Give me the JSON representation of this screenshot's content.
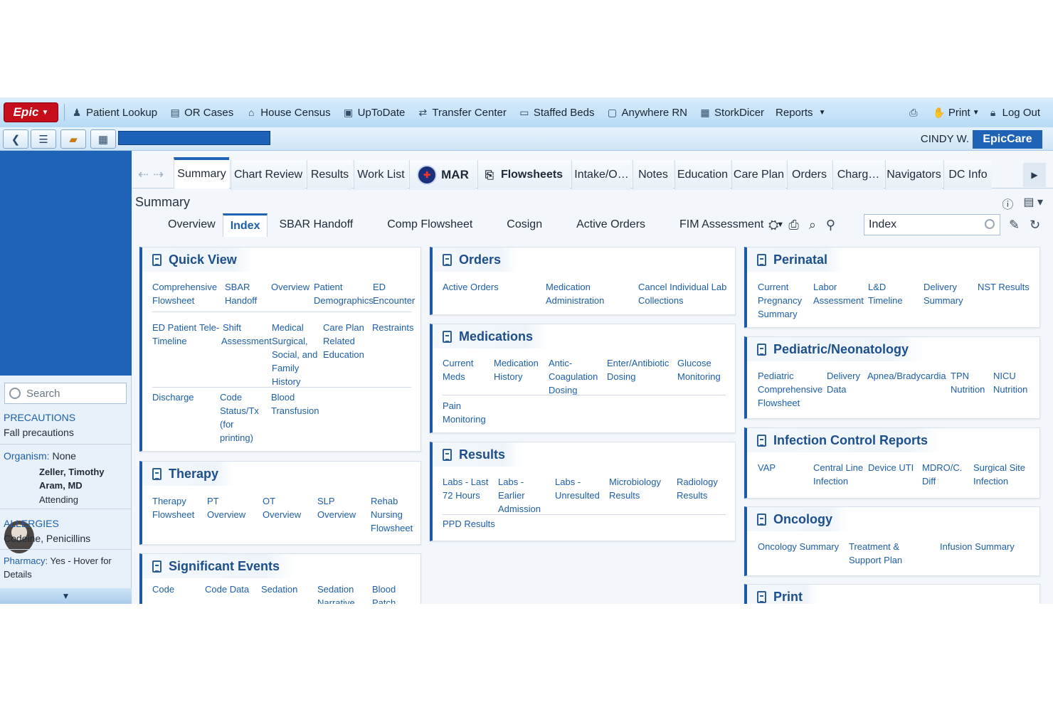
{
  "menubar": {
    "epic_label": "Epic",
    "items": [
      {
        "label": "Patient Lookup",
        "icon": "person-icon"
      },
      {
        "label": "OR Cases",
        "icon": "clipboard-icon"
      },
      {
        "label": "House Census",
        "icon": "house-icon"
      },
      {
        "label": "UpToDate",
        "icon": "book-icon"
      },
      {
        "label": "Transfer Center",
        "icon": "transfer-icon"
      },
      {
        "label": "Staffed Beds",
        "icon": "bed-icon"
      },
      {
        "label": "Anywhere RN",
        "icon": "document-icon"
      },
      {
        "label": "StorkDicer",
        "icon": "grid-icon"
      },
      {
        "label": "Reports",
        "icon": ""
      }
    ],
    "print_label": "Print",
    "logout_label": "Log Out"
  },
  "toolbar2": {
    "user": "CINDY W.",
    "app": "EpicCare"
  },
  "sidebar": {
    "search_placeholder": "Search",
    "precautions_label": "PRECAUTIONS",
    "precautions_value": "Fall precautions",
    "organism_label": "Organism:",
    "organism_value": "None",
    "physician_name_1": "Zeller, Timothy",
    "physician_name_2": "Aram, MD",
    "physician_role": "Attending",
    "allergies_label": "ALLERGIES",
    "allergies_value": "Codeine, Penicillins",
    "pharmacy_label": "Pharmacy:",
    "pharmacy_value_1": "Yes - Hover for",
    "pharmacy_value_2": "Details"
  },
  "tabs": [
    "Summary",
    "Chart Review",
    "Results",
    "Work List",
    "MAR",
    "Flowsheets",
    "Intake/O…",
    "Notes",
    "Education",
    "Care Plan",
    "Orders",
    "Charg…",
    "Navigators",
    "DC Info"
  ],
  "summary_title": "Summary",
  "subtabs": [
    "Overview",
    "Index",
    "SBAR Handoff",
    "Comp Flowsheet",
    "Cosign",
    "Active Orders",
    "FIM Assessment"
  ],
  "index_search_value": "Index",
  "cards": {
    "quick_view": {
      "title": "Quick View",
      "links": [
        "Comprehensive",
        "Flowsheet",
        "SBAR",
        "Handoff",
        "Overview",
        "Patient",
        "Demographics",
        "ED",
        "Encounter",
        "ED Patient",
        "Timeline",
        "Tele-",
        "Shift",
        "Assessment",
        "Medical",
        "Surgical,",
        "Social, and",
        "Family",
        "History",
        "Care Plan",
        "Related",
        "Education",
        "Restraints",
        "Discharge",
        "Code",
        "Status/Tx",
        "(for",
        "printing)",
        "Blood",
        "Transfusion"
      ]
    },
    "therapy": {
      "title": "Therapy",
      "links": [
        "Therapy",
        "Flowsheet",
        "PT",
        "Overview",
        "OT",
        "Overview",
        "SLP",
        "Overview",
        "Rehab",
        "Nursing",
        "Flowsheet"
      ]
    },
    "significant_events": {
      "title": "Significant Events",
      "links": [
        "Code",
        "Code Data",
        "Sedation",
        "Sedation",
        "Narrative",
        "Blood",
        "Patch"
      ]
    },
    "orders": {
      "title": "Orders",
      "links": [
        "Active Orders",
        "Medication",
        "Administration",
        "Cancel Individual Lab",
        "Collections"
      ]
    },
    "medications": {
      "title": "Medications",
      "links": [
        "Current",
        "Meds",
        "Medication",
        "History",
        "Antic-",
        "Coagulation",
        "Dosing",
        "Enter/Antibiotic",
        "Dosing",
        "Glucose",
        "Monitoring",
        "Pain",
        "Monitoring"
      ]
    },
    "results": {
      "title": "Results",
      "links": [
        "Labs - Last",
        "72 Hours",
        "Labs -",
        "Earlier",
        "Admission",
        "Labs -",
        "Unresulted",
        "Microbiology",
        "Results",
        "Radiology",
        "Results",
        "PPD Results"
      ]
    },
    "perinatal": {
      "title": "Perinatal",
      "links": [
        "Current",
        "Pregnancy",
        "Summary",
        "Labor",
        "Assessment",
        "L&D",
        "Timeline",
        "Delivery",
        "Summary",
        "NST Results"
      ]
    },
    "pediatric": {
      "title": "Pediatric/Neonatology",
      "links": [
        "Pediatric",
        "Comprehensive",
        "Flowsheet",
        "Delivery",
        "Data",
        "Apnea/Bradycardia",
        "TPN",
        "Nutrition",
        "NICU",
        "Nutrition"
      ]
    },
    "infection": {
      "title": "Infection Control Reports",
      "links": [
        "VAP",
        "Central Line",
        "Infection",
        "Device UTI",
        "MDRO/C.",
        "Diff",
        "Surgical Site",
        "Infection"
      ]
    },
    "oncology": {
      "title": "Oncology",
      "links": [
        "Oncology Summary",
        "Treatment &",
        "Support Plan",
        "Infusion Summary"
      ]
    },
    "print": {
      "title": "Print"
    }
  },
  "colors": {
    "accent": "#1e63b6",
    "epic_red": "#c60d1c",
    "link": "#1d5fa8",
    "menubar": "#b7dbf6"
  }
}
